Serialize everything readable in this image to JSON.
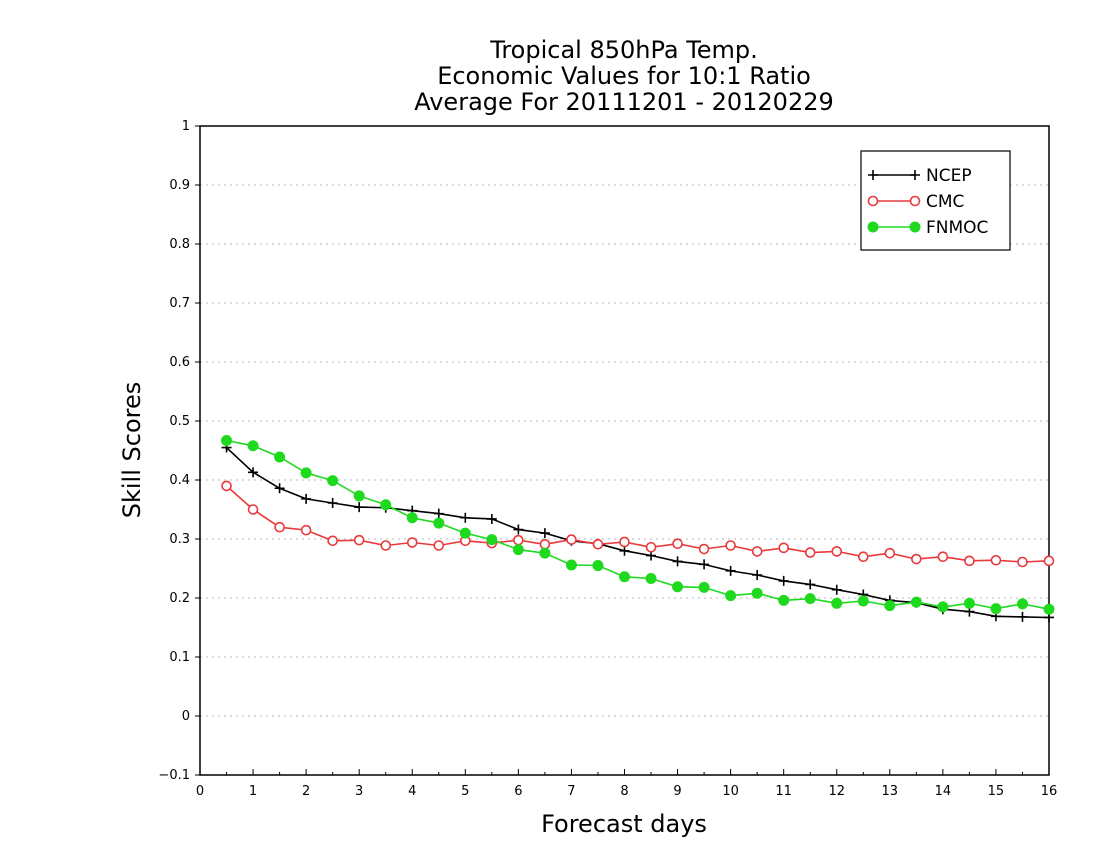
{
  "chart_data": {
    "type": "line",
    "title": [
      "Tropical 850hPa Temp.",
      "Economic Values for 10:1 Ratio",
      "Average For 20111201 - 20120229"
    ],
    "xlabel": "Forecast days",
    "ylabel": "Skill Scores",
    "xlim": [
      0,
      16
    ],
    "ylim": [
      -0.1,
      1
    ],
    "xticks": [
      "0",
      "1",
      "2",
      "3",
      "4",
      "5",
      "6",
      "7",
      "8",
      "9",
      "10",
      "11",
      "12",
      "13",
      "14",
      "15",
      "16"
    ],
    "yticks": [
      "−0.1",
      "0",
      "0.1",
      "0.2",
      "0.3",
      "0.4",
      "0.5",
      "0.6",
      "0.7",
      "0.8",
      "0.9",
      "1"
    ],
    "grid": true,
    "legend_position": "top-right",
    "x": [
      0.5,
      1,
      1.5,
      2,
      2.5,
      3,
      3.5,
      4,
      4.5,
      5,
      5.5,
      6,
      6.5,
      7,
      7.5,
      8,
      8.5,
      9,
      9.5,
      10,
      10.5,
      11,
      11.5,
      12,
      12.5,
      13,
      13.5,
      14,
      14.5,
      15,
      15.5,
      16
    ],
    "series": [
      {
        "name": "NCEP",
        "color": "#000000",
        "marker": "plus",
        "values": [
          0.455,
          0.413,
          0.386,
          0.368,
          0.361,
          0.354,
          0.353,
          0.348,
          0.343,
          0.336,
          0.334,
          0.316,
          0.31,
          0.297,
          0.292,
          0.28,
          0.272,
          0.262,
          0.257,
          0.246,
          0.239,
          0.229,
          0.223,
          0.214,
          0.206,
          0.196,
          0.192,
          0.181,
          0.177,
          0.169,
          0.168,
          0.167
        ]
      },
      {
        "name": "CMC",
        "color": "#e8393c",
        "marker": "open-circle",
        "values": [
          0.39,
          0.35,
          0.32,
          0.315,
          0.297,
          0.298,
          0.289,
          0.294,
          0.289,
          0.297,
          0.293,
          0.298,
          0.291,
          0.299,
          0.291,
          0.295,
          0.286,
          0.292,
          0.283,
          0.289,
          0.279,
          0.285,
          0.277,
          0.279,
          0.27,
          0.276,
          0.266,
          0.27,
          0.263,
          0.264,
          0.261,
          0.263
        ]
      },
      {
        "name": "FNMOC",
        "color": "#1fd91f",
        "marker": "filled-circle",
        "values": [
          0.467,
          0.458,
          0.439,
          0.412,
          0.399,
          0.373,
          0.358,
          0.336,
          0.327,
          0.31,
          0.299,
          0.282,
          0.276,
          0.256,
          0.255,
          0.236,
          0.233,
          0.219,
          0.218,
          0.204,
          0.208,
          0.196,
          0.199,
          0.191,
          0.195,
          0.187,
          0.193,
          0.185,
          0.191,
          0.182,
          0.19,
          0.181
        ]
      }
    ]
  }
}
